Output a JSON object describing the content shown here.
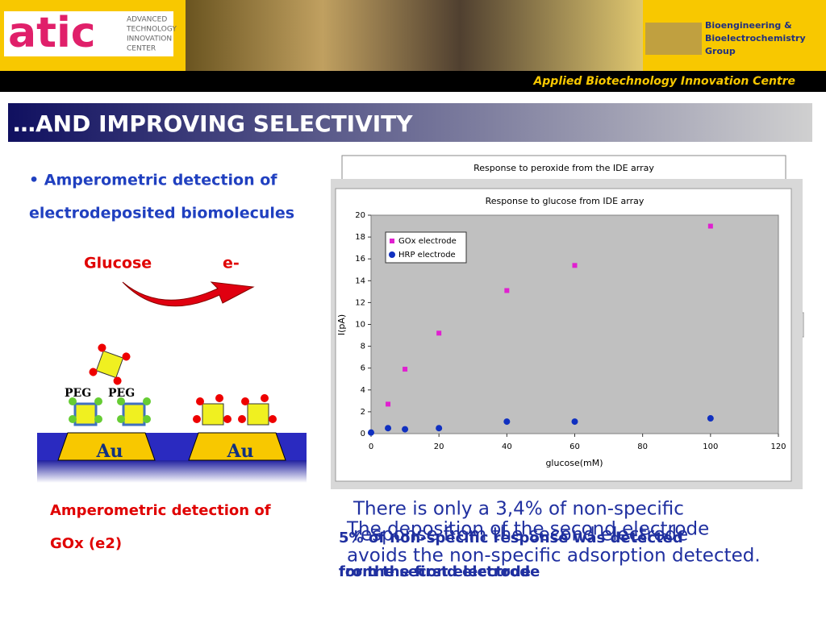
{
  "header": {
    "logo": "atic",
    "logo_lines": [
      "ADVANCED",
      "TECHNOLOGY",
      "INNOVATION",
      "CENTER"
    ],
    "group_lines": [
      "Bioengineering &",
      "Bioelectrochemistry",
      "Group"
    ],
    "banner": "Applied Biotechnology Innovation Centre"
  },
  "title": "…AND IMPROVING SELECTIVITY",
  "bullet": [
    "• Amperometric detection of",
    "electrodeposited biomolecules"
  ],
  "diagram": {
    "glucose": "Glucose",
    "electron": "e-",
    "peg": [
      "PEG",
      "PEG"
    ],
    "electrodes": [
      "Au",
      "Au"
    ]
  },
  "caption": [
    "Amperometric detection of",
    "GOx (e2)"
  ],
  "back_chart_title": "Response to peroxide from the IDE array",
  "chart_data": {
    "type": "scatter",
    "title": "Response to glucose from IDE array",
    "x_label": "glucose(mM)",
    "y_label": "I(pA)",
    "series": [
      {
        "name": "GOx electrode",
        "color": "#e020d0",
        "x": [
          5,
          10,
          20,
          40,
          60,
          100
        ],
        "values": [
          2.7,
          5.9,
          9.2,
          13.1,
          15.4,
          19
        ]
      },
      {
        "name": "HRP electrode",
        "color": "#1030c0",
        "x": [
          0,
          5,
          10,
          20,
          40,
          60,
          100
        ],
        "values": [
          0.1,
          0.5,
          0.4,
          0.5,
          1.1,
          1.1,
          1.4
        ]
      }
    ],
    "xlim": [
      0,
      120
    ],
    "ylim": [
      0,
      20
    ],
    "xticks": [
      0,
      20,
      40,
      60,
      80,
      100,
      120
    ],
    "yticks": [
      0,
      2,
      4,
      6,
      8,
      10,
      12,
      14,
      16,
      18,
      20
    ]
  },
  "notes": [
    "There is only a 3,4% of non-specific",
    "response from the second electrode",
    "The deposition of the second electrode",
    "avoids the non-specific adsorption detected.",
    "5% of non-specific response was detected",
    "from the first electrode",
    "for the second electrode"
  ]
}
